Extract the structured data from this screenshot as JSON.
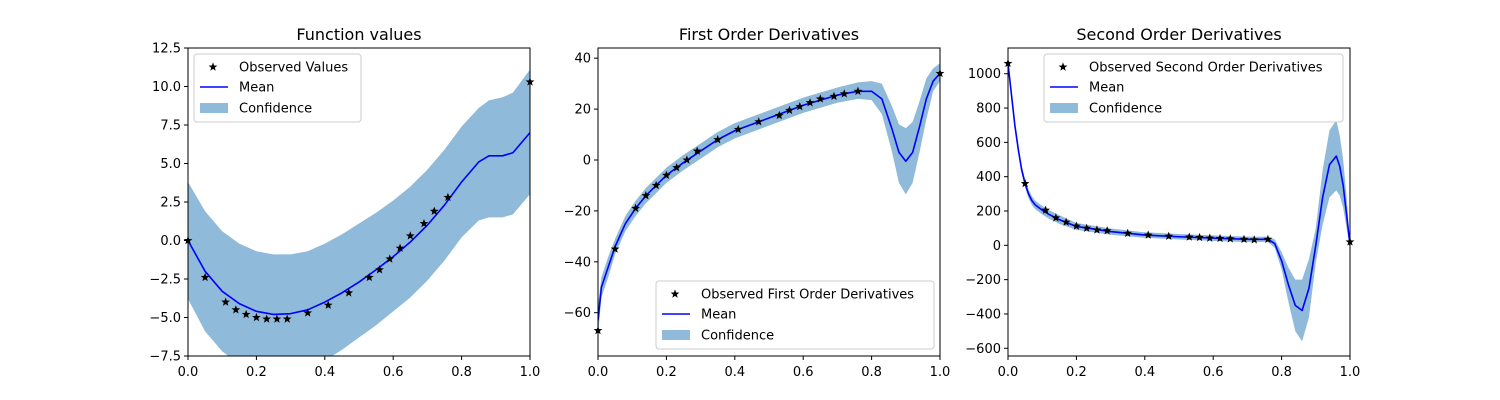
{
  "chart_data": [
    {
      "type": "line",
      "title": "Function values",
      "xlabel": "",
      "ylabel": "",
      "xlim": [
        0,
        1
      ],
      "ylim": [
        -7.5,
        12.5
      ],
      "xticks": [
        0.0,
        0.2,
        0.4,
        0.6,
        0.8,
        1.0
      ],
      "xtick_labels": [
        "0.0",
        "0.2",
        "0.4",
        "0.6",
        "0.8",
        "1.0"
      ],
      "yticks": [
        -7.5,
        -5.0,
        -2.5,
        0.0,
        2.5,
        5.0,
        7.5,
        10.0,
        12.5
      ],
      "ytick_labels": [
        "−7.5",
        "−5.0",
        "−2.5",
        "0.0",
        "2.5",
        "5.0",
        "7.5",
        "10.0",
        "12.5"
      ],
      "legend": {
        "placement": "top-left",
        "entries": [
          "Observed Values",
          "Mean",
          "Confidence"
        ]
      },
      "grid": false,
      "observed": {
        "x": [
          0.0,
          0.05,
          0.11,
          0.14,
          0.17,
          0.2,
          0.23,
          0.26,
          0.29,
          0.35,
          0.41,
          0.47,
          0.53,
          0.56,
          0.59,
          0.62,
          0.65,
          0.69,
          0.72,
          0.76,
          1.0
        ],
        "y": [
          0.0,
          -2.4,
          -4.0,
          -4.5,
          -4.8,
          -5.0,
          -5.1,
          -5.1,
          -5.1,
          -4.7,
          -4.2,
          -3.4,
          -2.4,
          -1.9,
          -1.2,
          -0.5,
          0.3,
          1.1,
          1.9,
          2.8,
          10.3
        ]
      },
      "mean": {
        "x": [
          0.0,
          0.05,
          0.1,
          0.15,
          0.2,
          0.25,
          0.3,
          0.35,
          0.4,
          0.45,
          0.5,
          0.55,
          0.6,
          0.65,
          0.7,
          0.75,
          0.8,
          0.85,
          0.88,
          0.92,
          0.95,
          1.0
        ],
        "y": [
          0.0,
          -2.0,
          -3.3,
          -4.1,
          -4.6,
          -4.8,
          -4.75,
          -4.5,
          -4.0,
          -3.4,
          -2.7,
          -1.9,
          -1.05,
          -0.1,
          1.0,
          2.3,
          3.8,
          5.1,
          5.5,
          5.5,
          5.7,
          7.0
        ]
      },
      "confidence": {
        "x": [
          0.0,
          0.05,
          0.1,
          0.15,
          0.2,
          0.25,
          0.3,
          0.35,
          0.4,
          0.45,
          0.5,
          0.55,
          0.6,
          0.65,
          0.7,
          0.75,
          0.8,
          0.85,
          0.88,
          0.92,
          0.95,
          1.0
        ],
        "lower": [
          -3.8,
          -5.9,
          -7.2,
          -8.0,
          -8.6,
          -8.7,
          -8.6,
          -8.3,
          -7.8,
          -7.1,
          -6.3,
          -5.5,
          -4.6,
          -3.7,
          -2.6,
          -1.3,
          0.2,
          1.3,
          1.5,
          1.5,
          1.7,
          3.0
        ],
        "upper": [
          3.8,
          1.9,
          0.6,
          -0.2,
          -0.7,
          -0.9,
          -0.9,
          -0.7,
          -0.2,
          0.4,
          1.1,
          1.8,
          2.6,
          3.5,
          4.6,
          5.9,
          7.4,
          8.6,
          9.1,
          9.3,
          9.6,
          11.1
        ]
      }
    },
    {
      "type": "line",
      "title": "First Order Derivatives",
      "xlabel": "",
      "ylabel": "",
      "xlim": [
        0,
        1
      ],
      "ylim": [
        -77,
        44
      ],
      "xticks": [
        0.0,
        0.2,
        0.4,
        0.6,
        0.8,
        1.0
      ],
      "xtick_labels": [
        "0.0",
        "0.2",
        "0.4",
        "0.6",
        "0.8",
        "1.0"
      ],
      "yticks": [
        -60,
        -40,
        -20,
        0,
        20,
        40
      ],
      "ytick_labels": [
        "−60",
        "−40",
        "−20",
        "0",
        "20",
        "40"
      ],
      "legend": {
        "placement": "bottom-right",
        "entries": [
          "Observed First Order Derivatives",
          "Mean",
          "Confidence"
        ]
      },
      "grid": false,
      "observed": {
        "x": [
          0.0,
          0.05,
          0.11,
          0.14,
          0.17,
          0.2,
          0.23,
          0.26,
          0.29,
          0.35,
          0.41,
          0.47,
          0.53,
          0.56,
          0.59,
          0.62,
          0.65,
          0.69,
          0.72,
          0.76,
          1.0
        ],
        "y": [
          -67,
          -35,
          -19,
          -14,
          -10,
          -6,
          -3,
          0,
          3.5,
          8,
          12,
          15,
          17.5,
          19.5,
          21,
          22.5,
          24,
          25,
          26,
          27,
          34
        ]
      },
      "mean": {
        "x": [
          0.0,
          0.01,
          0.03,
          0.05,
          0.08,
          0.11,
          0.14,
          0.17,
          0.2,
          0.25,
          0.3,
          0.35,
          0.4,
          0.5,
          0.6,
          0.7,
          0.76,
          0.8,
          0.83,
          0.86,
          0.88,
          0.9,
          0.92,
          0.94,
          0.96,
          0.98,
          1.0
        ],
        "y": [
          -63,
          -50,
          -42,
          -34,
          -25,
          -19,
          -14,
          -10,
          -6,
          -1,
          3.5,
          8,
          11.5,
          16.5,
          21.5,
          25.5,
          27,
          27,
          24,
          12,
          3,
          -0.5,
          3,
          13,
          24,
          31,
          34
        ]
      },
      "confidence": {
        "x": [
          0.0,
          0.01,
          0.03,
          0.05,
          0.08,
          0.11,
          0.14,
          0.17,
          0.2,
          0.25,
          0.3,
          0.35,
          0.4,
          0.5,
          0.6,
          0.7,
          0.76,
          0.8,
          0.83,
          0.86,
          0.88,
          0.9,
          0.92,
          0.94,
          0.96,
          0.98,
          1.0
        ],
        "lower": [
          -69,
          -54,
          -46,
          -37,
          -28,
          -22,
          -17,
          -13,
          -9,
          -4,
          0.5,
          5,
          8.5,
          13.5,
          18.5,
          22.5,
          24,
          23.5,
          18,
          3,
          -9,
          -13.5,
          -9,
          3,
          16,
          27,
          31
        ],
        "upper": [
          -57,
          -46,
          -38,
          -31,
          -22,
          -16,
          -11,
          -7,
          -3,
          2,
          6.5,
          11,
          14.5,
          19.5,
          24.5,
          28.5,
          30.5,
          31,
          30,
          21,
          14,
          12.5,
          15,
          23,
          32,
          36,
          38
        ]
      }
    },
    {
      "type": "line",
      "title": "Second Order Derivatives",
      "xlabel": "",
      "ylabel": "",
      "xlim": [
        0,
        1
      ],
      "ylim": [
        -645,
        1150
      ],
      "xticks": [
        0.0,
        0.2,
        0.4,
        0.6,
        0.8,
        1.0
      ],
      "xtick_labels": [
        "0.0",
        "0.2",
        "0.4",
        "0.6",
        "0.8",
        "1.0"
      ],
      "yticks": [
        -600,
        -400,
        -200,
        0,
        200,
        400,
        600,
        800,
        1000
      ],
      "ytick_labels": [
        "−600",
        "−400",
        "−200",
        "0",
        "200",
        "400",
        "600",
        "800",
        "1000"
      ],
      "legend": {
        "placement": "top-right",
        "entries": [
          "Observed Second Order Derivatives",
          "Mean",
          "Confidence"
        ]
      },
      "grid": false,
      "observed": {
        "x": [
          0.0,
          0.05,
          0.11,
          0.14,
          0.17,
          0.2,
          0.23,
          0.26,
          0.29,
          0.35,
          0.41,
          0.47,
          0.53,
          0.56,
          0.59,
          0.62,
          0.65,
          0.69,
          0.72,
          0.76,
          1.0
        ],
        "y": [
          1060,
          360,
          205,
          160,
          135,
          112,
          100,
          90,
          85,
          70,
          60,
          53,
          48,
          46,
          42,
          40,
          38,
          35,
          32,
          35,
          20
        ]
      },
      "mean": {
        "x": [
          0.0,
          0.01,
          0.02,
          0.03,
          0.04,
          0.05,
          0.06,
          0.07,
          0.08,
          0.1,
          0.12,
          0.15,
          0.2,
          0.3,
          0.4,
          0.5,
          0.6,
          0.7,
          0.76,
          0.78,
          0.8,
          0.82,
          0.84,
          0.86,
          0.88,
          0.9,
          0.92,
          0.94,
          0.96,
          0.97,
          0.98,
          0.99,
          1.0
        ],
        "y": [
          1060,
          880,
          700,
          560,
          440,
          360,
          300,
          260,
          235,
          205,
          180,
          150,
          110,
          80,
          60,
          50,
          42,
          35,
          35,
          10,
          -90,
          -230,
          -350,
          -380,
          -250,
          0,
          280,
          470,
          520,
          460,
          350,
          180,
          0
        ]
      },
      "confidence": {
        "x": [
          0.0,
          0.01,
          0.02,
          0.03,
          0.04,
          0.05,
          0.06,
          0.07,
          0.08,
          0.1,
          0.12,
          0.15,
          0.2,
          0.3,
          0.4,
          0.5,
          0.6,
          0.7,
          0.76,
          0.78,
          0.8,
          0.82,
          0.84,
          0.86,
          0.88,
          0.9,
          0.92,
          0.94,
          0.96,
          0.97,
          0.98,
          0.99,
          1.0
        ],
        "lower": [
          1040,
          855,
          675,
          535,
          415,
          335,
          275,
          235,
          210,
          180,
          155,
          125,
          90,
          62,
          44,
          34,
          26,
          19,
          20,
          -15,
          -140,
          -330,
          -500,
          -560,
          -420,
          -100,
          120,
          280,
          320,
          290,
          220,
          100,
          -10
        ],
        "upper": [
          1080,
          905,
          725,
          585,
          465,
          385,
          325,
          285,
          260,
          230,
          205,
          175,
          130,
          98,
          76,
          66,
          58,
          51,
          50,
          35,
          -40,
          -130,
          -200,
          -200,
          -80,
          100,
          440,
          670,
          730,
          640,
          500,
          280,
          20
        ]
      }
    }
  ]
}
